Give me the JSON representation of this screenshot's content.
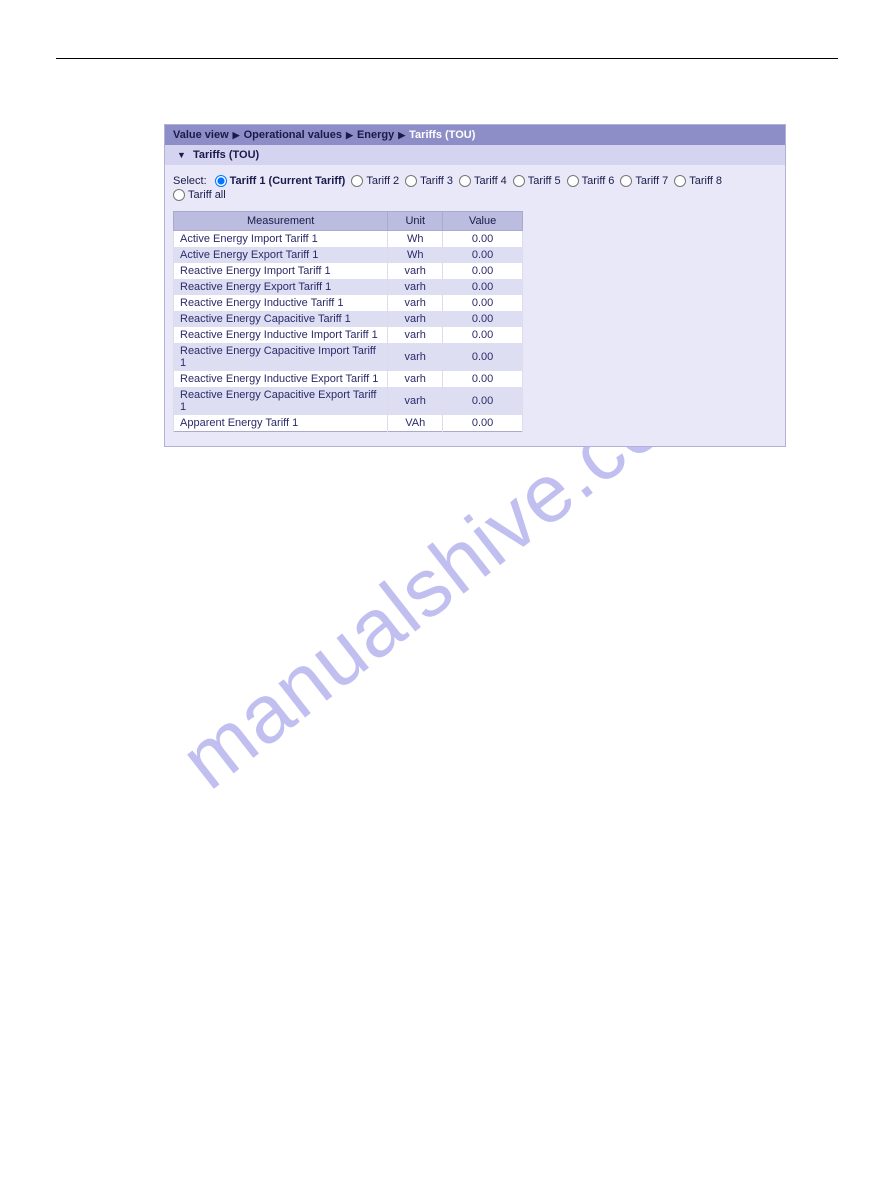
{
  "watermark": "manualshive.com",
  "breadcrumb": {
    "items": [
      {
        "label": "Value view",
        "active": false
      },
      {
        "label": "Operational values",
        "active": false
      },
      {
        "label": "Energy",
        "active": false
      },
      {
        "label": "Tariffs (TOU)",
        "active": true
      }
    ],
    "separator": "▶"
  },
  "section": {
    "title": "Tariffs (TOU)",
    "collapse_glyph": "▼"
  },
  "selector": {
    "label": "Select:",
    "options": [
      {
        "id": "t1",
        "label": "Tariff 1 (Current Tariff)",
        "selected": true
      },
      {
        "id": "t2",
        "label": "Tariff 2",
        "selected": false
      },
      {
        "id": "t3",
        "label": "Tariff 3",
        "selected": false
      },
      {
        "id": "t4",
        "label": "Tariff 4",
        "selected": false
      },
      {
        "id": "t5",
        "label": "Tariff 5",
        "selected": false
      },
      {
        "id": "t6",
        "label": "Tariff 6",
        "selected": false
      },
      {
        "id": "t7",
        "label": "Tariff 7",
        "selected": false
      },
      {
        "id": "t8",
        "label": "Tariff 8",
        "selected": false
      },
      {
        "id": "tall",
        "label": "Tariff all",
        "selected": false
      }
    ]
  },
  "table": {
    "columns": [
      "Measurement",
      "Unit",
      "Value"
    ],
    "rows": [
      {
        "measurement": "Active Energy Import Tariff 1",
        "unit": "Wh",
        "value": "0.00"
      },
      {
        "measurement": "Active Energy Export Tariff 1",
        "unit": "Wh",
        "value": "0.00"
      },
      {
        "measurement": "Reactive Energy Import Tariff 1",
        "unit": "varh",
        "value": "0.00"
      },
      {
        "measurement": "Reactive Energy Export Tariff 1",
        "unit": "varh",
        "value": "0.00"
      },
      {
        "measurement": "Reactive Energy Inductive Tariff 1",
        "unit": "varh",
        "value": "0.00"
      },
      {
        "measurement": "Reactive Energy Capacitive Tariff 1",
        "unit": "varh",
        "value": "0.00"
      },
      {
        "measurement": "Reactive Energy Inductive Import Tariff 1",
        "unit": "varh",
        "value": "0.00"
      },
      {
        "measurement": "Reactive Energy Capacitive Import Tariff 1",
        "unit": "varh",
        "value": "0.00"
      },
      {
        "measurement": "Reactive Energy Inductive Export Tariff 1",
        "unit": "varh",
        "value": "0.00"
      },
      {
        "measurement": "Reactive Energy Capacitive Export Tariff 1",
        "unit": "varh",
        "value": "0.00"
      },
      {
        "measurement": "Apparent Energy Tariff 1",
        "unit": "VAh",
        "value": "0.00"
      }
    ],
    "header_bg": "#bcbce0",
    "row_alt_bg": "#dedef2",
    "row_bg": "#ffffff",
    "border_color": "#aaaacc",
    "text_color": "#2a2a6a"
  },
  "colors": {
    "panel_bg": "#e8e8f8",
    "breadcrumb_bg": "#8d8dc8",
    "section_header_bg": "#d4d4f0",
    "active_crumb": "#ffffff",
    "watermark_color": "#8d8be2"
  }
}
